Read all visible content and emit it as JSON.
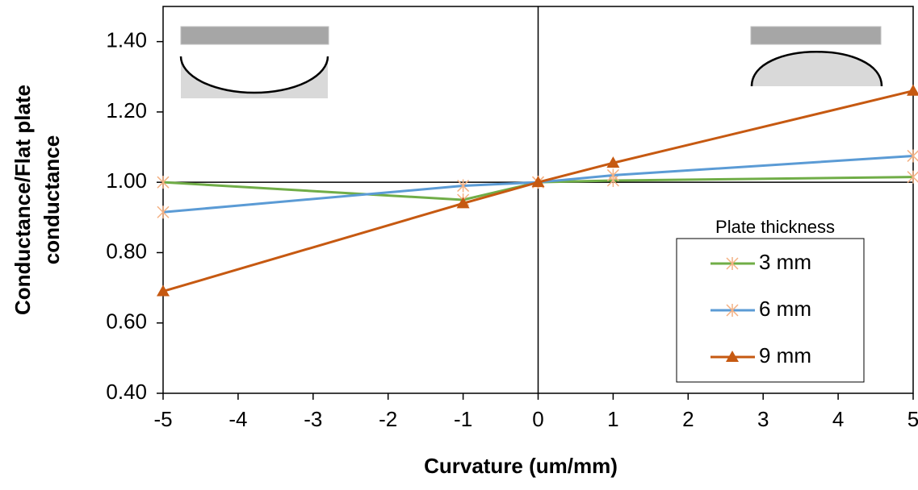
{
  "chart_data": {
    "type": "line",
    "xlabel": "Curvature (um/mm)",
    "ylabel": [
      "Conductance/Flat plate",
      "conductance"
    ],
    "x": [
      -5,
      -1,
      0,
      1,
      5
    ],
    "series": [
      {
        "name": "3 mm",
        "color": "#70ad47",
        "marker": "star",
        "marker_color": "#f4b183",
        "values": [
          1.0,
          0.95,
          1.0,
          1.005,
          1.015
        ]
      },
      {
        "name": "6 mm",
        "color": "#5b9bd5",
        "marker": "star",
        "marker_color": "#f4b183",
        "values": [
          0.915,
          0.99,
          1.0,
          1.02,
          1.075
        ]
      },
      {
        "name": "9 mm",
        "color": "#c65911",
        "marker": "triangle",
        "marker_color": "#c65911",
        "values": [
          0.69,
          0.94,
          1.0,
          1.055,
          1.26
        ]
      }
    ],
    "legend_title": "Plate thickness",
    "xlim": [
      -5,
      5
    ],
    "xticks": [
      -5,
      -4,
      -3,
      -2,
      -1,
      0,
      1,
      2,
      3,
      4,
      5
    ],
    "ylim": [
      0.4,
      1.5
    ],
    "yticks": [
      {
        "value": 0.4,
        "label": "0.40"
      },
      {
        "value": 0.6,
        "label": "0.60"
      },
      {
        "value": 0.8,
        "label": "0.80"
      },
      {
        "value": 1.0,
        "label": "1.00"
      },
      {
        "value": 1.2,
        "label": "1.20"
      },
      {
        "value": 1.4,
        "label": "1.40"
      }
    ],
    "x_cross": 0,
    "y_cross": 1.0
  }
}
